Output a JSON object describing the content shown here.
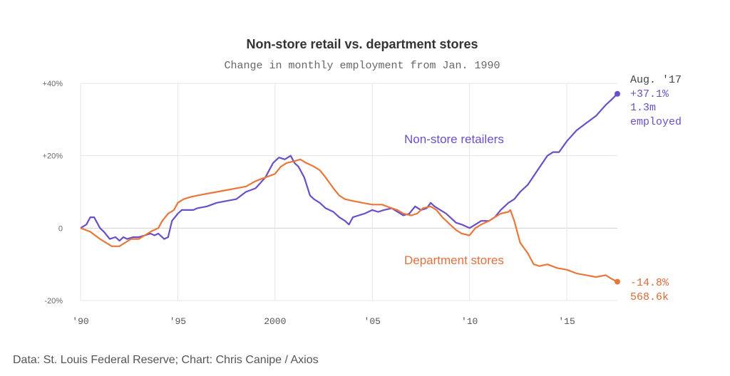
{
  "chart_data": {
    "type": "line",
    "title": "Non-store retail vs. department stores",
    "subtitle": "Change in monthly employment from Jan. 1990",
    "source": "Data: St. Louis Federal Reserve; Chart: Chris Canipe / Axios",
    "y_ticks": [
      "+40%",
      "+20%",
      "0",
      "-20%"
    ],
    "y_tick_values": [
      40,
      20,
      0,
      -20
    ],
    "x_ticks": [
      "'90",
      "'95",
      "2000",
      "'05",
      "'10",
      "'15"
    ],
    "x_tick_values": [
      1990,
      1995,
      2000,
      2005,
      2010,
      2015
    ],
    "xlim": [
      1990,
      2017.6
    ],
    "ylim": [
      -22,
      42
    ],
    "grid": true,
    "series": [
      {
        "name": "Non-store retailers",
        "color": "#6a4fc8",
        "x": [
          1990,
          1990.3,
          1990.5,
          1990.7,
          1990.9,
          1991.0,
          1991.2,
          1991.5,
          1991.8,
          1992.0,
          1992.2,
          1992.4,
          1992.7,
          1993.0,
          1993.3,
          1993.6,
          1993.8,
          1994.0,
          1994.3,
          1994.5,
          1994.7,
          1995.0,
          1995.2,
          1995.5,
          1995.8,
          1996.0,
          1996.5,
          1997.0,
          1997.5,
          1998.0,
          1998.5,
          1999.0,
          1999.5,
          1999.9,
          2000.2,
          2000.5,
          2000.8,
          2001.0,
          2001.2,
          2001.5,
          2001.8,
          2002.0,
          2002.3,
          2002.6,
          2003.0,
          2003.3,
          2003.6,
          2003.8,
          2004.0,
          2004.3,
          2004.6,
          2005.0,
          2005.3,
          2005.6,
          2006.0,
          2006.3,
          2006.6,
          2006.9,
          2007.2,
          2007.5,
          2007.8,
          2008.0,
          2008.2,
          2008.5,
          2008.8,
          2009.0,
          2009.3,
          2009.6,
          2010.0,
          2010.3,
          2010.6,
          2011.0,
          2011.3,
          2011.6,
          2012.0,
          2012.3,
          2012.6,
          2013.0,
          2013.5,
          2014.0,
          2014.3,
          2014.6,
          2015.0,
          2015.5,
          2016.0,
          2016.5,
          2017.0,
          2017.3,
          2017.6
        ],
        "y": [
          0,
          1,
          3,
          3,
          1,
          0,
          -1,
          -3,
          -2.5,
          -3.5,
          -2.5,
          -3,
          -2.5,
          -2.5,
          -2,
          -1.5,
          -2,
          -1.5,
          -3,
          -2.5,
          2,
          4,
          5,
          5,
          5,
          5.5,
          6,
          7,
          7.5,
          8,
          10,
          11,
          14,
          18,
          19.5,
          19,
          20,
          18,
          17,
          14,
          9,
          8,
          7,
          5.5,
          4.5,
          3,
          2,
          1,
          3,
          3.5,
          4,
          5,
          4.5,
          5,
          5.5,
          4.5,
          3.5,
          4,
          6,
          5,
          5.5,
          7,
          6,
          5,
          4,
          3,
          1.5,
          1,
          0,
          1,
          2,
          2,
          3,
          5,
          7,
          8,
          10,
          12,
          16,
          20,
          21,
          21,
          24,
          27,
          29,
          31,
          34,
          35.5,
          37.1
        ]
      },
      {
        "name": "Department stores",
        "color": "#e8773c",
        "x": [
          1990,
          1990.5,
          1991.0,
          1991.3,
          1991.6,
          1992.0,
          1992.3,
          1992.6,
          1993.0,
          1993.3,
          1993.6,
          1994.0,
          1994.2,
          1994.5,
          1994.8,
          1995.0,
          1995.3,
          1995.6,
          1996.0,
          1996.5,
          1997.0,
          1997.5,
          1998.0,
          1998.5,
          1999.0,
          1999.5,
          2000.0,
          2000.3,
          2000.6,
          2001.0,
          2001.3,
          2001.6,
          2002.0,
          2002.3,
          2002.6,
          2003.0,
          2003.3,
          2003.6,
          2004.0,
          2004.5,
          2005.0,
          2005.5,
          2006.0,
          2006.3,
          2006.6,
          2007.0,
          2007.3,
          2007.6,
          2008.0,
          2008.3,
          2008.6,
          2009.0,
          2009.3,
          2009.6,
          2010.0,
          2010.3,
          2010.6,
          2011.0,
          2011.3,
          2011.6,
          2012.0,
          2012.1,
          2012.3,
          2012.6,
          2013.0,
          2013.3,
          2013.6,
          2014.0,
          2014.5,
          2015.0,
          2015.5,
          2016.0,
          2016.5,
          2017.0,
          2017.3,
          2017.6
        ],
        "y": [
          0,
          -1,
          -3,
          -4,
          -5,
          -5,
          -4,
          -3,
          -3,
          -2,
          -1,
          0,
          2,
          4,
          5,
          7,
          8,
          8.5,
          9,
          9.5,
          10,
          10.5,
          11,
          11.5,
          13,
          14,
          15,
          17,
          18,
          18.5,
          19,
          18,
          17,
          16,
          14,
          11,
          9,
          8,
          7.5,
          7,
          6.5,
          6.5,
          5.5,
          5,
          4,
          3.5,
          4,
          5.5,
          6,
          5,
          3,
          1,
          -0.5,
          -1.5,
          -2,
          0,
          1,
          2,
          3,
          4,
          4.5,
          5,
          2,
          -4,
          -7,
          -10,
          -10.5,
          -10,
          -11,
          -11.5,
          -12.5,
          -13,
          -13.5,
          -13,
          -14,
          -14.8
        ]
      }
    ],
    "labels": {
      "nonstore_label": "Non-store retailers",
      "dept_label": "Department stores"
    },
    "annotations": {
      "nonstore": [
        "Aug. '17",
        "+37.1%",
        "1.3m",
        "employed"
      ],
      "dept": [
        "-14.8%",
        "568.6k"
      ]
    }
  }
}
